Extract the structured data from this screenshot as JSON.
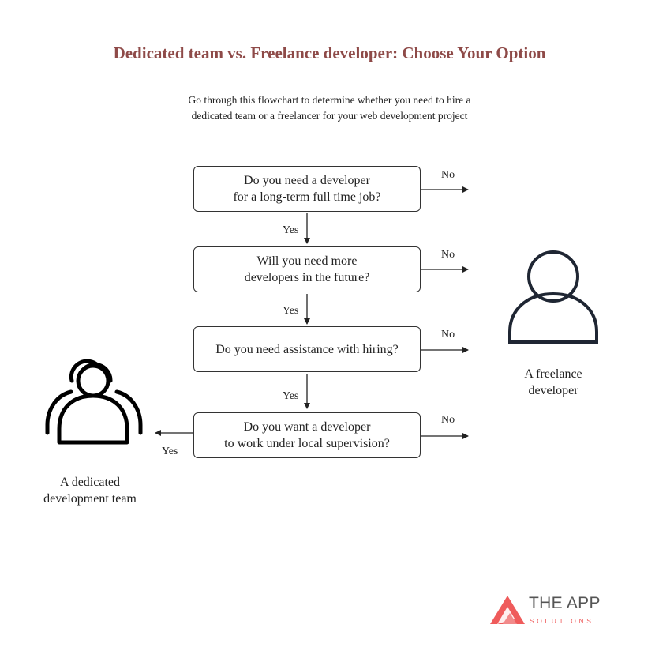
{
  "title": "Dedicated team vs. Freelance developer: Choose Your Option",
  "subtitle": {
    "line1": "Go through this flowchart to determine whether you need to hire a",
    "line2": "dedicated team or a freelancer for your web development project"
  },
  "questions": [
    {
      "line1": "Do you need a developer",
      "line2": "for a long-term full time job?"
    },
    {
      "line1": "Will you need more",
      "line2": "developers in the future?"
    },
    {
      "line1": "Do you need assistance with hiring?",
      "line2": ""
    },
    {
      "line1": "Do you want a developer",
      "line2": "to work under local supervision?"
    }
  ],
  "edges": {
    "yes": "Yes",
    "no": "No"
  },
  "outcomes": {
    "freelancer": {
      "line1": "A freelance",
      "line2": "developer",
      "icon": "person-icon"
    },
    "team": {
      "line1": "A dedicated",
      "line2": "development team",
      "icon": "team-icon"
    }
  },
  "colors": {
    "title": "#8e4a48",
    "accent": "#ef5b5b",
    "stroke": "#1f2633"
  },
  "brand": {
    "name": "THE APP",
    "sub": "SOLUTIONS",
    "icon": "triangle-logo-icon"
  }
}
